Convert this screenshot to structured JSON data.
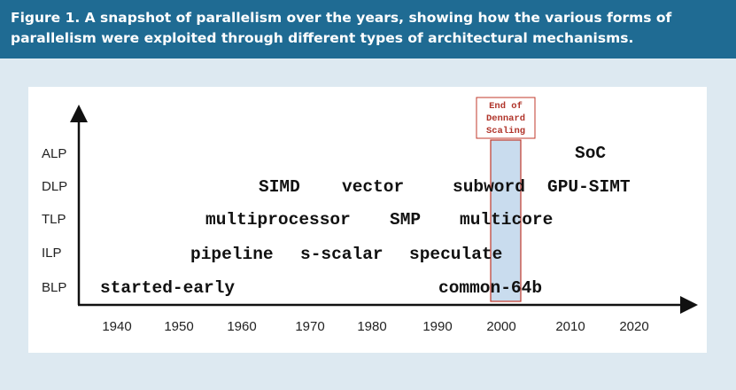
{
  "caption": {
    "line1": "Figure 1. A snapshot of parallelism over the years, showing how the various forms of",
    "line2": "parallelism were exploited through different types of architectural mechanisms."
  },
  "y_axis": {
    "levels": [
      "ALP",
      "DLP",
      "TLP",
      "ILP",
      "BLP"
    ]
  },
  "x_axis": {
    "ticks": [
      "1940",
      "1950",
      "1960",
      "1970",
      "1980",
      "1990",
      "2000",
      "2010",
      "2020"
    ]
  },
  "highlight": {
    "label_lines": [
      "End of",
      "Dennard",
      "Scaling"
    ],
    "fill": "#c9dcee",
    "stroke": "#c0392b"
  },
  "terms": {
    "alp_soc": "SoC",
    "dlp_simd": "SIMD",
    "dlp_vector": "vector",
    "dlp_subword": "subword",
    "dlp_gpu_simt": "GPU-SIMT",
    "tlp_multiprocessor": "multiprocessor",
    "tlp_smp": "SMP",
    "tlp_multicore": "multicore",
    "ilp_pipeline": "pipeline",
    "ilp_s_scalar": "s-scalar",
    "ilp_speculate": "speculate",
    "blp_started_early": "started-early",
    "blp_common_64b": "common-64b"
  }
}
